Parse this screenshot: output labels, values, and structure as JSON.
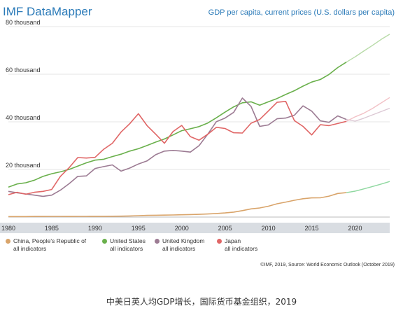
{
  "header": {
    "app_title": "IMF DataMapper",
    "chart_title": "GDP per capita, current prices (U.S. dollars per capita)"
  },
  "chart_data": {
    "type": "line",
    "title": "GDP per capita, current prices (U.S. dollars per capita)",
    "xlabel": "",
    "ylabel": "",
    "x_range": [
      1980,
      2024
    ],
    "ylim": [
      0,
      80000
    ],
    "x_ticks": [
      1980,
      1985,
      1990,
      1995,
      2000,
      2005,
      2010,
      2015,
      2020
    ],
    "x_tick_labels": [
      "1980",
      "1985",
      "1990",
      "1995",
      "2000",
      "2005",
      "2010",
      "2015",
      "2020"
    ],
    "y_ticks": [
      20000,
      40000,
      60000,
      80000
    ],
    "y_tick_labels": [
      "20 thousand",
      "40 thousand",
      "60 thousand",
      "80 thousand"
    ],
    "grid": true,
    "legend_position": "bottom-left",
    "actual_end_year": 2019,
    "projection_end_year": 2024,
    "series": [
      {
        "name": "China, People's Republic of",
        "legend_lines": [
          "China, People's Republic of",
          "all indicators"
        ],
        "color": "#d9a46a",
        "projection_color": "#8fd8a0",
        "x": [
          1980,
          1981,
          1982,
          1983,
          1984,
          1985,
          1986,
          1987,
          1988,
          1989,
          1990,
          1991,
          1992,
          1993,
          1994,
          1995,
          1996,
          1997,
          1998,
          1999,
          2000,
          2001,
          2002,
          2003,
          2004,
          2005,
          2006,
          2007,
          2008,
          2009,
          2010,
          2011,
          2012,
          2013,
          2014,
          2015,
          2016,
          2017,
          2018,
          2019,
          2020,
          2021,
          2022,
          2023,
          2024
        ],
        "values": [
          200,
          200,
          200,
          250,
          250,
          300,
          280,
          250,
          280,
          300,
          320,
          330,
          360,
          380,
          470,
          600,
          700,
          770,
          820,
          870,
          960,
          1050,
          1150,
          1300,
          1500,
          1750,
          2100,
          2700,
          3450,
          3830,
          4550,
          5600,
          6300,
          7050,
          7700,
          8050,
          8100,
          8800,
          9900,
          10260,
          10870,
          11820,
          12820,
          13850,
          14950
        ]
      },
      {
        "name": "United States",
        "legend_lines": [
          "United States",
          "all indicators"
        ],
        "color": "#6ab04c",
        "projection_color": "#b8dba8",
        "x": [
          1980,
          1981,
          1982,
          1983,
          1984,
          1985,
          1986,
          1987,
          1988,
          1989,
          1990,
          1991,
          1992,
          1993,
          1994,
          1995,
          1996,
          1997,
          1998,
          1999,
          2000,
          2001,
          2002,
          2003,
          2004,
          2005,
          2006,
          2007,
          2008,
          2009,
          2010,
          2011,
          2012,
          2013,
          2014,
          2015,
          2016,
          2017,
          2018,
          2019,
          2020,
          2021,
          2022,
          2023,
          2024
        ],
        "values": [
          12600,
          13900,
          14400,
          15500,
          17100,
          18200,
          19000,
          20000,
          21400,
          22800,
          23900,
          24300,
          25400,
          26400,
          27700,
          28700,
          30100,
          31500,
          32800,
          34500,
          36300,
          37100,
          38000,
          39500,
          41700,
          44100,
          46300,
          48000,
          48400,
          47000,
          48400,
          49800,
          51500,
          53100,
          55000,
          56700,
          57800,
          59900,
          62800,
          65100,
          67300,
          69700,
          72100,
          74600,
          76800
        ]
      },
      {
        "name": "United Kingdom",
        "legend_lines": [
          "United Kingdom",
          "all indicators"
        ],
        "color": "#9c7b93",
        "projection_color": "#dcc8d4",
        "x": [
          1980,
          1981,
          1982,
          1983,
          1984,
          1985,
          1986,
          1987,
          1988,
          1989,
          1990,
          1991,
          1992,
          1993,
          1994,
          1995,
          1996,
          1997,
          1998,
          1999,
          2000,
          2001,
          2002,
          2003,
          2004,
          2005,
          2006,
          2007,
          2008,
          2009,
          2010,
          2011,
          2012,
          2013,
          2014,
          2015,
          2016,
          2017,
          2018,
          2019,
          2020,
          2021,
          2022,
          2023,
          2024
        ],
        "values": [
          10800,
          10200,
          9700,
          9200,
          8700,
          9200,
          11300,
          14000,
          17100,
          17300,
          20400,
          21200,
          21900,
          19300,
          20600,
          22300,
          23600,
          26200,
          27700,
          28000,
          27700,
          27300,
          30000,
          34800,
          40100,
          41600,
          44000,
          50000,
          46500,
          38100,
          38700,
          41300,
          41600,
          42800,
          46700,
          44500,
          40400,
          39800,
          42500,
          41000,
          40300,
          41500,
          42900,
          44300,
          45700
        ]
      },
      {
        "name": "Japan",
        "legend_lines": [
          "Japan",
          "all indicators"
        ],
        "color": "#e06666",
        "projection_color": "#f2c2c7",
        "x": [
          1980,
          1981,
          1982,
          1983,
          1984,
          1985,
          1986,
          1987,
          1988,
          1989,
          1990,
          1991,
          1992,
          1993,
          1994,
          1995,
          1996,
          1997,
          1998,
          1999,
          2000,
          2001,
          2002,
          2003,
          2004,
          2005,
          2006,
          2007,
          2008,
          2009,
          2010,
          2011,
          2012,
          2013,
          2014,
          2015,
          2016,
          2017,
          2018,
          2019,
          2020,
          2021,
          2022,
          2023,
          2024
        ],
        "values": [
          9400,
          10400,
          9600,
          10400,
          10800,
          11600,
          17100,
          20700,
          25000,
          24800,
          25100,
          28500,
          31000,
          35700,
          39200,
          43400,
          38400,
          34800,
          31000,
          35900,
          38500,
          33800,
          32300,
          34800,
          37700,
          37200,
          35400,
          35300,
          39400,
          41000,
          44600,
          48200,
          48600,
          40500,
          38100,
          34500,
          38800,
          38400,
          39300,
          40200,
          42100,
          43600,
          45600,
          47900,
          50200
        ]
      }
    ],
    "source": "©IMF, 2019, Source: World Economic Outlook (October 2019)"
  },
  "caption": "中美日英人均GDP增长，国际货币基金组织，2019"
}
